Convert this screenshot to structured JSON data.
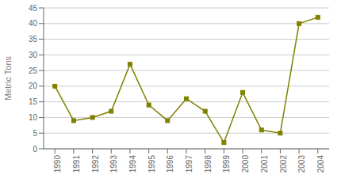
{
  "chart_data": {
    "type": "line",
    "x": [
      1990,
      1991,
      1992,
      1993,
      1994,
      1995,
      1996,
      1997,
      1998,
      1999,
      2000,
      2001,
      2002,
      2003,
      2004
    ],
    "values": [
      20,
      9,
      10,
      12,
      27,
      14,
      9,
      16,
      12,
      2,
      18,
      6,
      5,
      40,
      42
    ],
    "color": "#808000",
    "marker": "square",
    "ylabel": "Metric Tons",
    "xlim": [
      1989.4,
      2004.6
    ],
    "xticks": [
      1990,
      1991,
      1992,
      1993,
      1994,
      1995,
      1996,
      1997,
      1998,
      1999,
      2000,
      2001,
      2002,
      2003,
      2004
    ],
    "ylim": [
      0,
      45
    ],
    "yticks": [
      0,
      5,
      10,
      15,
      20,
      25,
      30,
      35,
      40,
      45
    ],
    "grid": "y"
  }
}
